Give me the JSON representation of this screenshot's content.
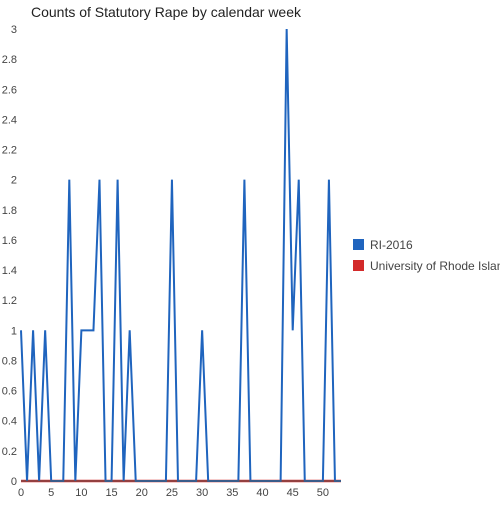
{
  "chart_data": {
    "type": "line",
    "title": "Counts of Statutory Rape by calendar week",
    "xlabel": "",
    "ylabel": "",
    "xlim": [
      0,
      53
    ],
    "ylim": [
      0,
      3
    ],
    "x_ticks": [
      0,
      5,
      10,
      15,
      20,
      25,
      30,
      35,
      40,
      45,
      50
    ],
    "y_ticks": [
      0,
      0.2,
      0.4,
      0.6,
      0.8,
      1,
      1.2,
      1.4,
      1.6,
      1.8,
      2,
      2.2,
      2.4,
      2.6,
      2.8,
      3
    ],
    "grid": false,
    "legend_position": "right",
    "x": [
      0,
      1,
      2,
      3,
      4,
      5,
      6,
      7,
      8,
      9,
      10,
      11,
      12,
      13,
      14,
      15,
      16,
      17,
      18,
      19,
      20,
      21,
      22,
      23,
      24,
      25,
      26,
      27,
      28,
      29,
      30,
      31,
      32,
      33,
      34,
      35,
      36,
      37,
      38,
      39,
      40,
      41,
      42,
      43,
      44,
      45,
      46,
      47,
      48,
      49,
      50,
      51,
      52,
      53
    ],
    "series": [
      {
        "name": "RI-2016",
        "color": "#1f64be",
        "values": [
          1,
          0,
          1,
          0,
          1,
          0,
          0,
          0,
          2,
          0,
          1,
          1,
          1,
          2,
          0,
          0,
          2,
          0,
          1,
          0,
          0,
          0,
          0,
          0,
          0,
          2,
          0,
          0,
          0,
          0,
          1,
          0,
          0,
          0,
          0,
          0,
          0,
          2,
          0,
          0,
          0,
          0,
          0,
          0,
          3,
          1,
          2,
          0,
          0,
          0,
          0,
          2,
          0,
          0
        ]
      },
      {
        "name": "University of Rhode Island",
        "color": "#d32a2a",
        "values": [
          0,
          0,
          0,
          0,
          0,
          0,
          0,
          0,
          0,
          0,
          0,
          0,
          0,
          0,
          0,
          0,
          0,
          0,
          0,
          0,
          0,
          0,
          0,
          0,
          0,
          0,
          0,
          0,
          0,
          0,
          0,
          0,
          0,
          0,
          0,
          0,
          0,
          0,
          0,
          0,
          0,
          0,
          0,
          0,
          0,
          0,
          0,
          0,
          0,
          0,
          0,
          0,
          0,
          0
        ]
      }
    ]
  }
}
